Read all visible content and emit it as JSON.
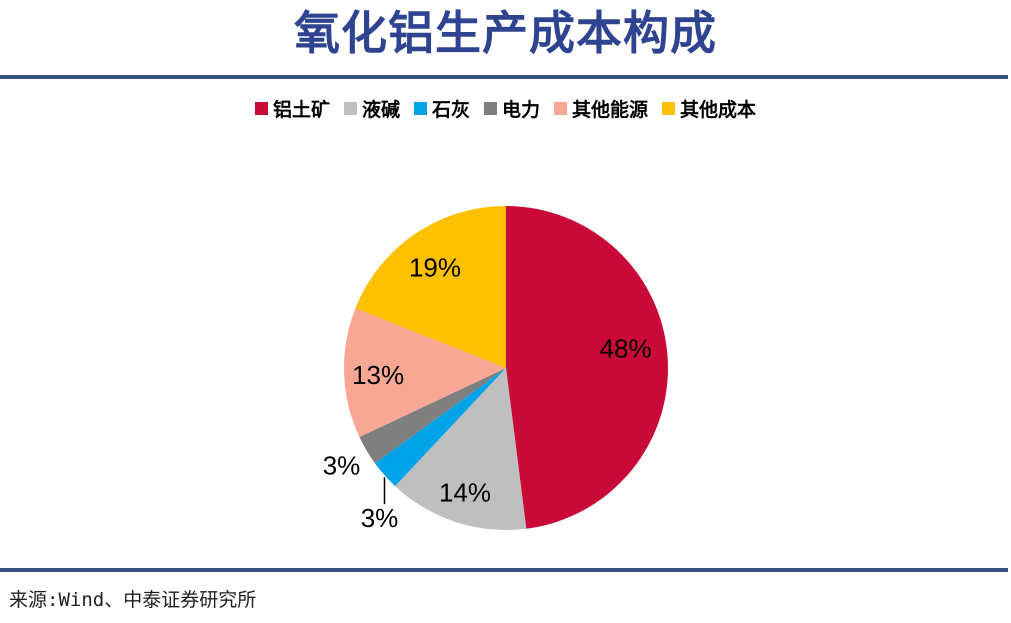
{
  "page": {
    "title": "氧化铝生产成本构成",
    "source": "来源:Wind、中泰证券研究所"
  },
  "colors": {
    "title": "#2F4490",
    "divider": "#3D5181",
    "label_text": "#000000",
    "leader_line": "#000000"
  },
  "chart_data": {
    "type": "pie",
    "title": "氧化铝生产成本构成",
    "legend_position": "top",
    "start_angle_deg": 0,
    "direction": "clockwise",
    "unit": "%",
    "categories": [
      "铝土矿",
      "液碱",
      "石灰",
      "电力",
      "其他能源",
      "其他成本"
    ],
    "values": [
      48,
      14,
      3,
      3,
      13,
      19
    ],
    "slices": [
      {
        "label": "铝土矿",
        "value": 48,
        "pct_label": "48%",
        "color": "#C90A38",
        "label_placement": "inside"
      },
      {
        "label": "液碱",
        "value": 14,
        "pct_label": "14%",
        "color": "#BFBFBF",
        "label_placement": "inside"
      },
      {
        "label": "石灰",
        "value": 3,
        "pct_label": "3%",
        "color": "#00A2E8",
        "label_placement": "outside-leader"
      },
      {
        "label": "电力",
        "value": 3,
        "pct_label": "3%",
        "color": "#7F7F7F",
        "label_placement": "outside"
      },
      {
        "label": "其他能源",
        "value": 13,
        "pct_label": "13%",
        "color": "#F7A794",
        "label_placement": "inside"
      },
      {
        "label": "其他成本",
        "value": 19,
        "pct_label": "19%",
        "color": "#FFC000",
        "label_placement": "inside"
      }
    ]
  }
}
